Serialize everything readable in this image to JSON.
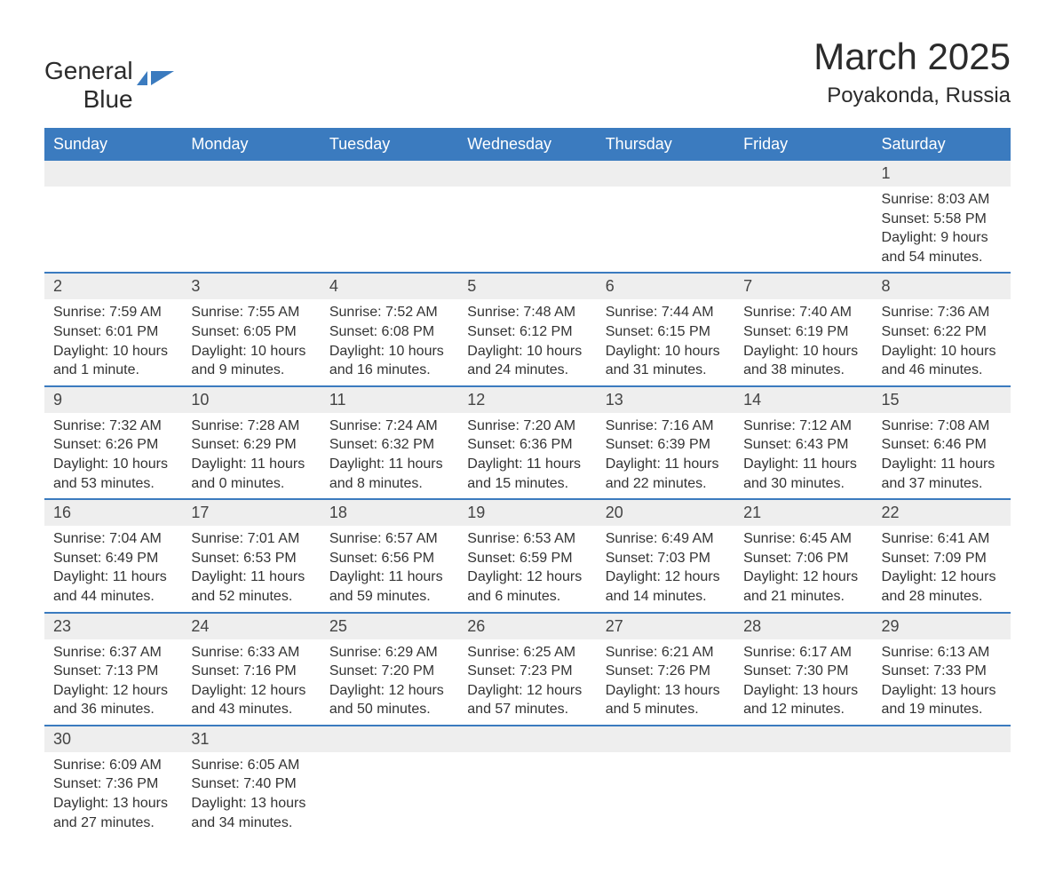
{
  "logo": {
    "text1": "General",
    "text2": "Blue"
  },
  "title": "March 2025",
  "location": "Poyakonda, Russia",
  "columns": [
    "Sunday",
    "Monday",
    "Tuesday",
    "Wednesday",
    "Thursday",
    "Friday",
    "Saturday"
  ],
  "style": {
    "header_bg": "#3b7bbf",
    "header_text": "#ffffff",
    "daynum_bg": "#eeeeee",
    "body_bg": "#ffffff",
    "divider_color": "#3b7bbf",
    "title_fontsize": 42,
    "location_fontsize": 24,
    "header_fontsize": 18,
    "daynum_fontsize": 18,
    "detail_fontsize": 16,
    "text_color": "#333333"
  },
  "weeks": [
    [
      null,
      null,
      null,
      null,
      null,
      null,
      {
        "day": "1",
        "sunrise": "8:03 AM",
        "sunset": "5:58 PM",
        "daylight": "9 hours and 54 minutes."
      }
    ],
    [
      {
        "day": "2",
        "sunrise": "7:59 AM",
        "sunset": "6:01 PM",
        "daylight": "10 hours and 1 minute."
      },
      {
        "day": "3",
        "sunrise": "7:55 AM",
        "sunset": "6:05 PM",
        "daylight": "10 hours and 9 minutes."
      },
      {
        "day": "4",
        "sunrise": "7:52 AM",
        "sunset": "6:08 PM",
        "daylight": "10 hours and 16 minutes."
      },
      {
        "day": "5",
        "sunrise": "7:48 AM",
        "sunset": "6:12 PM",
        "daylight": "10 hours and 24 minutes."
      },
      {
        "day": "6",
        "sunrise": "7:44 AM",
        "sunset": "6:15 PM",
        "daylight": "10 hours and 31 minutes."
      },
      {
        "day": "7",
        "sunrise": "7:40 AM",
        "sunset": "6:19 PM",
        "daylight": "10 hours and 38 minutes."
      },
      {
        "day": "8",
        "sunrise": "7:36 AM",
        "sunset": "6:22 PM",
        "daylight": "10 hours and 46 minutes."
      }
    ],
    [
      {
        "day": "9",
        "sunrise": "7:32 AM",
        "sunset": "6:26 PM",
        "daylight": "10 hours and 53 minutes."
      },
      {
        "day": "10",
        "sunrise": "7:28 AM",
        "sunset": "6:29 PM",
        "daylight": "11 hours and 0 minutes."
      },
      {
        "day": "11",
        "sunrise": "7:24 AM",
        "sunset": "6:32 PM",
        "daylight": "11 hours and 8 minutes."
      },
      {
        "day": "12",
        "sunrise": "7:20 AM",
        "sunset": "6:36 PM",
        "daylight": "11 hours and 15 minutes."
      },
      {
        "day": "13",
        "sunrise": "7:16 AM",
        "sunset": "6:39 PM",
        "daylight": "11 hours and 22 minutes."
      },
      {
        "day": "14",
        "sunrise": "7:12 AM",
        "sunset": "6:43 PM",
        "daylight": "11 hours and 30 minutes."
      },
      {
        "day": "15",
        "sunrise": "7:08 AM",
        "sunset": "6:46 PM",
        "daylight": "11 hours and 37 minutes."
      }
    ],
    [
      {
        "day": "16",
        "sunrise": "7:04 AM",
        "sunset": "6:49 PM",
        "daylight": "11 hours and 44 minutes."
      },
      {
        "day": "17",
        "sunrise": "7:01 AM",
        "sunset": "6:53 PM",
        "daylight": "11 hours and 52 minutes."
      },
      {
        "day": "18",
        "sunrise": "6:57 AM",
        "sunset": "6:56 PM",
        "daylight": "11 hours and 59 minutes."
      },
      {
        "day": "19",
        "sunrise": "6:53 AM",
        "sunset": "6:59 PM",
        "daylight": "12 hours and 6 minutes."
      },
      {
        "day": "20",
        "sunrise": "6:49 AM",
        "sunset": "7:03 PM",
        "daylight": "12 hours and 14 minutes."
      },
      {
        "day": "21",
        "sunrise": "6:45 AM",
        "sunset": "7:06 PM",
        "daylight": "12 hours and 21 minutes."
      },
      {
        "day": "22",
        "sunrise": "6:41 AM",
        "sunset": "7:09 PM",
        "daylight": "12 hours and 28 minutes."
      }
    ],
    [
      {
        "day": "23",
        "sunrise": "6:37 AM",
        "sunset": "7:13 PM",
        "daylight": "12 hours and 36 minutes."
      },
      {
        "day": "24",
        "sunrise": "6:33 AM",
        "sunset": "7:16 PM",
        "daylight": "12 hours and 43 minutes."
      },
      {
        "day": "25",
        "sunrise": "6:29 AM",
        "sunset": "7:20 PM",
        "daylight": "12 hours and 50 minutes."
      },
      {
        "day": "26",
        "sunrise": "6:25 AM",
        "sunset": "7:23 PM",
        "daylight": "12 hours and 57 minutes."
      },
      {
        "day": "27",
        "sunrise": "6:21 AM",
        "sunset": "7:26 PM",
        "daylight": "13 hours and 5 minutes."
      },
      {
        "day": "28",
        "sunrise": "6:17 AM",
        "sunset": "7:30 PM",
        "daylight": "13 hours and 12 minutes."
      },
      {
        "day": "29",
        "sunrise": "6:13 AM",
        "sunset": "7:33 PM",
        "daylight": "13 hours and 19 minutes."
      }
    ],
    [
      {
        "day": "30",
        "sunrise": "6:09 AM",
        "sunset": "7:36 PM",
        "daylight": "13 hours and 27 minutes."
      },
      {
        "day": "31",
        "sunrise": "6:05 AM",
        "sunset": "7:40 PM",
        "daylight": "13 hours and 34 minutes."
      },
      null,
      null,
      null,
      null,
      null
    ]
  ],
  "labels": {
    "sunrise": "Sunrise: ",
    "sunset": "Sunset: ",
    "daylight": "Daylight: "
  }
}
